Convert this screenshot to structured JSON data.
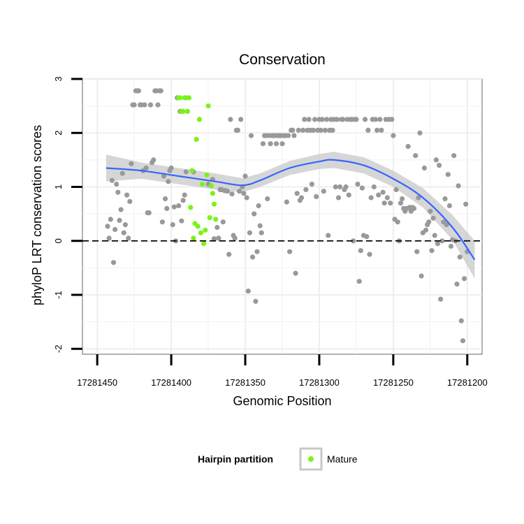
{
  "chart_data": {
    "type": "scatter",
    "title": "Conservation",
    "xlabel": "Genomic Position",
    "ylabel": "phyloP LRT conservation scores",
    "xlim": [
      17281460,
      17281190
    ],
    "ylim": [
      -2.1,
      3.0
    ],
    "x_ticks": [
      17281450,
      17281400,
      17281350,
      17281300,
      17281250,
      17281200
    ],
    "x_tick_labels": [
      "17281450",
      "17281400",
      "17281350",
      "17281300",
      "17281250",
      "17281200"
    ],
    "y_ticks": [
      -2,
      -1,
      0,
      1,
      2,
      3
    ],
    "y_tick_labels": [
      "-2",
      "-1",
      "0",
      "1",
      "2",
      "3"
    ],
    "reference_line": {
      "y": 0,
      "style": "dashed"
    },
    "colors": {
      "other": "#999999",
      "mature": "#7cf21c",
      "smooth": "#3366ff",
      "ribbon": "#c8c8c8",
      "panel": "#ffffff",
      "grid": "#ebebeb",
      "frame": "#7f7f7f"
    },
    "legend": {
      "title": "Hairpin partition",
      "entries": [
        {
          "label": "Mature",
          "color": "#7cf21c"
        }
      ],
      "position": "bottom"
    },
    "smooth_curve": {
      "x": [
        17281444,
        17281420,
        17281395,
        17281370,
        17281352,
        17281340,
        17281320,
        17281300,
        17281290,
        17281270,
        17281250,
        17281230,
        17281210,
        17281195
      ],
      "y": [
        1.35,
        1.3,
        1.2,
        1.1,
        1.03,
        1.12,
        1.35,
        1.47,
        1.5,
        1.4,
        1.15,
        0.8,
        0.25,
        -0.35
      ],
      "lower": [
        1.1,
        1.15,
        1.05,
        0.95,
        0.9,
        1.0,
        1.22,
        1.33,
        1.35,
        1.25,
        1.0,
        0.62,
        0.02,
        -0.7
      ],
      "upper": [
        1.6,
        1.45,
        1.35,
        1.25,
        1.16,
        1.25,
        1.48,
        1.61,
        1.65,
        1.55,
        1.3,
        0.98,
        0.48,
        0.0
      ]
    },
    "series": [
      {
        "name": "Other",
        "color": "#999999",
        "points": [
          [
            17281443,
            0.27
          ],
          [
            17281442,
            0.05
          ],
          [
            17281441,
            0.4
          ],
          [
            17281440,
            1.12
          ],
          [
            17281439,
            -0.4
          ],
          [
            17281438,
            0.21
          ],
          [
            17281437,
            1.05
          ],
          [
            17281436,
            0.9
          ],
          [
            17281435,
            0.38
          ],
          [
            17281434,
            0.58
          ],
          [
            17281433,
            1.25
          ],
          [
            17281432,
            0.15
          ],
          [
            17281431,
            0.3
          ],
          [
            17281430,
            0.85
          ],
          [
            17281429,
            0.05
          ],
          [
            17281428,
            0.73
          ],
          [
            17281427,
            1.43
          ],
          [
            17281426,
            2.52
          ],
          [
            17281425,
            2.52
          ],
          [
            17281424,
            2.78
          ],
          [
            17281423,
            2.78
          ],
          [
            17281422,
            2.78
          ],
          [
            17281421,
            2.52
          ],
          [
            17281420,
            2.52
          ],
          [
            17281419,
            1.3
          ],
          [
            17281418,
            2.52
          ],
          [
            17281417,
            1.35
          ],
          [
            17281416,
            0.52
          ],
          [
            17281415,
            0.52
          ],
          [
            17281414,
            2.52
          ],
          [
            17281413,
            1.45
          ],
          [
            17281412,
            1.5
          ],
          [
            17281411,
            2.78
          ],
          [
            17281410,
            2.78
          ],
          [
            17281409,
            2.52
          ],
          [
            17281408,
            2.78
          ],
          [
            17281407,
            2.78
          ],
          [
            17281406,
            0.35
          ],
          [
            17281405,
            1.2
          ],
          [
            17281404,
            0.78
          ],
          [
            17281403,
            0.6
          ],
          [
            17281402,
            1.1
          ],
          [
            17281401,
            1.3
          ],
          [
            17281400,
            1.35
          ],
          [
            17281399,
            0.3
          ],
          [
            17281398,
            0.63
          ],
          [
            17281397,
            0.0
          ],
          [
            17281396,
            2.65
          ],
          [
            17281395,
            0.65
          ],
          [
            17281394,
            2.4
          ],
          [
            17281393,
            0.37
          ],
          [
            17281392,
            0.75
          ],
          [
            17281391,
            0.85
          ],
          [
            17281390,
            1.28
          ],
          [
            17281389,
            2.4
          ],
          [
            17281385,
            1.28
          ],
          [
            17281375,
            1.05
          ],
          [
            17281372,
            1.14
          ],
          [
            17281371,
            0.04
          ],
          [
            17281369,
            0.25
          ],
          [
            17281368,
            0.05
          ],
          [
            17281367,
            0.95
          ],
          [
            17281366,
            0.95
          ],
          [
            17281365,
            0.35
          ],
          [
            17281364,
            0.93
          ],
          [
            17281363,
            0.93
          ],
          [
            17281362,
            0.92
          ],
          [
            17281361,
            -0.25
          ],
          [
            17281360,
            2.25
          ],
          [
            17281359,
            0.87
          ],
          [
            17281358,
            0.1
          ],
          [
            17281357,
            0.05
          ],
          [
            17281356,
            2.05
          ],
          [
            17281355,
            2.05
          ],
          [
            17281354,
            0.92
          ],
          [
            17281353,
            2.25
          ],
          [
            17281352,
            1.0
          ],
          [
            17281351,
            0.88
          ],
          [
            17281350,
            1.2
          ],
          [
            17281349,
            0.8
          ],
          [
            17281348,
            -0.93
          ],
          [
            17281347,
            0.15
          ],
          [
            17281346,
            1.95
          ],
          [
            17281345,
            -0.3
          ],
          [
            17281344,
            0.5
          ],
          [
            17281343,
            -1.12
          ],
          [
            17281342,
            -0.2
          ],
          [
            17281341,
            0.65
          ],
          [
            17281340,
            0.28
          ],
          [
            17281339,
            0.15
          ],
          [
            17281338,
            1.8
          ],
          [
            17281337,
            1.95
          ],
          [
            17281336,
            1.95
          ],
          [
            17281335,
            0.78
          ],
          [
            17281334,
            1.95
          ],
          [
            17281333,
            1.8
          ],
          [
            17281332,
            1.95
          ],
          [
            17281331,
            1.95
          ],
          [
            17281330,
            1.95
          ],
          [
            17281329,
            1.8
          ],
          [
            17281328,
            1.95
          ],
          [
            17281327,
            1.95
          ],
          [
            17281326,
            1.95
          ],
          [
            17281325,
            1.8
          ],
          [
            17281324,
            1.95
          ],
          [
            17281323,
            1.95
          ],
          [
            17281322,
            0.72
          ],
          [
            17281321,
            1.95
          ],
          [
            17281320,
            -0.2
          ],
          [
            17281319,
            2.05
          ],
          [
            17281318,
            2.05
          ],
          [
            17281317,
            1.95
          ],
          [
            17281316,
            -0.6
          ],
          [
            17281315,
            0.88
          ],
          [
            17281314,
            2.05
          ],
          [
            17281313,
            0.75
          ],
          [
            17281312,
            0.8
          ],
          [
            17281311,
            2.05
          ],
          [
            17281310,
            2.25
          ],
          [
            17281309,
            0.95
          ],
          [
            17281308,
            2.05
          ],
          [
            17281307,
            2.25
          ],
          [
            17281306,
            2.05
          ],
          [
            17281305,
            1.05
          ],
          [
            17281304,
            2.05
          ],
          [
            17281303,
            2.25
          ],
          [
            17281302,
            0.82
          ],
          [
            17281301,
            2.05
          ],
          [
            17281300,
            2.25
          ],
          [
            17281299,
            2.05
          ],
          [
            17281298,
            2.25
          ],
          [
            17281297,
            0.92
          ],
          [
            17281296,
            2.05
          ],
          [
            17281295,
            2.25
          ],
          [
            17281294,
            0.1
          ],
          [
            17281293,
            2.05
          ],
          [
            17281292,
            2.25
          ],
          [
            17281291,
            2.05
          ],
          [
            17281290,
            2.25
          ],
          [
            17281289,
            1.0
          ],
          [
            17281288,
            2.25
          ],
          [
            17281287,
            0.8
          ],
          [
            17281286,
            1.0
          ],
          [
            17281285,
            2.25
          ],
          [
            17281284,
            2.25
          ],
          [
            17281283,
            0.95
          ],
          [
            17281282,
            1.0
          ],
          [
            17281281,
            2.25
          ],
          [
            17281280,
            0.85
          ],
          [
            17281279,
            2.25
          ],
          [
            17281278,
            2.25
          ],
          [
            17281277,
            0.0
          ],
          [
            17281276,
            2.25
          ],
          [
            17281275,
            2.25
          ],
          [
            17281274,
            1.05
          ],
          [
            17281273,
            -0.75
          ],
          [
            17281272,
            -0.18
          ],
          [
            17281271,
            0.98
          ],
          [
            17281270,
            0.1
          ],
          [
            17281269,
            2.25
          ],
          [
            17281268,
            0.08
          ],
          [
            17281267,
            2.05
          ],
          [
            17281266,
            -0.25
          ],
          [
            17281265,
            0.8
          ],
          [
            17281264,
            2.25
          ],
          [
            17281263,
            1.0
          ],
          [
            17281262,
            2.25
          ],
          [
            17281261,
            2.05
          ],
          [
            17281260,
            0.85
          ],
          [
            17281259,
            2.25
          ],
          [
            17281258,
            2.05
          ],
          [
            17281257,
            0.9
          ],
          [
            17281256,
            0.7
          ],
          [
            17281255,
            2.25
          ],
          [
            17281254,
            0.8
          ],
          [
            17281253,
            2.25
          ],
          [
            17281252,
            0.7
          ],
          [
            17281251,
            2.25
          ],
          [
            17281250,
            1.95
          ],
          [
            17281249,
            0.4
          ],
          [
            17281248,
            0.95
          ],
          [
            17281247,
            0.35
          ],
          [
            17281246,
            0.0
          ],
          [
            17281245,
            0.7
          ],
          [
            17281244,
            0.78
          ],
          [
            17281243,
            0.6
          ],
          [
            17281242,
            0.55
          ],
          [
            17281241,
            0.6
          ],
          [
            17281240,
            1.75
          ],
          [
            17281239,
            0.62
          ],
          [
            17281238,
            0.55
          ],
          [
            17281237,
            0.62
          ],
          [
            17281236,
            0.6
          ],
          [
            17281235,
            1.58
          ],
          [
            17281234,
            -0.2
          ],
          [
            17281233,
            0.8
          ],
          [
            17281232,
            2.0
          ],
          [
            17281231,
            -0.65
          ],
          [
            17281230,
            0.15
          ],
          [
            17281229,
            1.35
          ],
          [
            17281228,
            0.2
          ],
          [
            17281227,
            0.3
          ],
          [
            17281226,
            0.35
          ],
          [
            17281225,
            0.55
          ],
          [
            17281224,
            -0.18
          ],
          [
            17281223,
            0.42
          ],
          [
            17281222,
            0.1
          ],
          [
            17281221,
            1.5
          ],
          [
            17281220,
            -0.05
          ],
          [
            17281219,
            1.4
          ],
          [
            17281218,
            -1.08
          ],
          [
            17281217,
            0.0
          ],
          [
            17281216,
            0.35
          ],
          [
            17281215,
            0.78
          ],
          [
            17281214,
            0.3
          ],
          [
            17281213,
            1.23
          ],
          [
            17281212,
            0.65
          ],
          [
            17281211,
            -0.1
          ],
          [
            17281210,
            0.02
          ],
          [
            17281209,
            1.58
          ],
          [
            17281208,
            0.0
          ],
          [
            17281207,
            -0.8
          ],
          [
            17281206,
            1.02
          ],
          [
            17281205,
            -0.3
          ],
          [
            17281204,
            -1.48
          ],
          [
            17281203,
            -1.85
          ],
          [
            17281202,
            -0.7
          ],
          [
            17281201,
            0.68
          ],
          [
            17281200,
            -0.2
          ]
        ]
      },
      {
        "name": "Mature",
        "color": "#7cf21c",
        "points": [
          [
            17281395,
            2.65
          ],
          [
            17281394,
            2.65
          ],
          [
            17281393,
            2.4
          ],
          [
            17281392,
            2.4
          ],
          [
            17281391,
            2.65
          ],
          [
            17281390,
            2.65
          ],
          [
            17281389,
            2.4
          ],
          [
            17281388,
            2.65
          ],
          [
            17281387,
            0.62
          ],
          [
            17281386,
            1.3
          ],
          [
            17281385,
            0.05
          ],
          [
            17281384,
            0.32
          ],
          [
            17281383,
            1.88
          ],
          [
            17281382,
            0.27
          ],
          [
            17281381,
            2.25
          ],
          [
            17281380,
            0.15
          ],
          [
            17281379,
            1.05
          ],
          [
            17281378,
            -0.05
          ],
          [
            17281377,
            0.2
          ],
          [
            17281376,
            1.22
          ],
          [
            17281375,
            2.5
          ],
          [
            17281374,
            0.43
          ],
          [
            17281373,
            1.02
          ],
          [
            17281372,
            0.88
          ],
          [
            17281371,
            0.68
          ],
          [
            17281370,
            0.4
          ]
        ]
      }
    ]
  }
}
